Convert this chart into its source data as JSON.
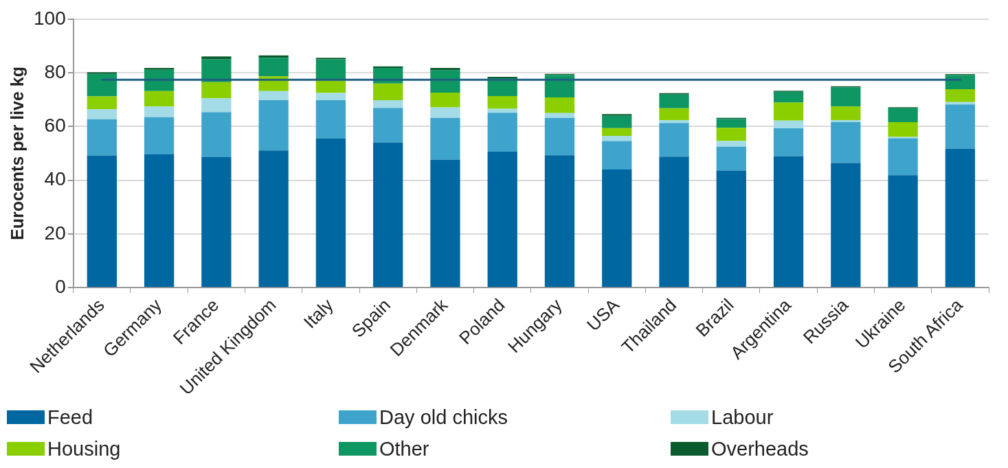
{
  "chart_data": {
    "type": "bar",
    "stacked": true,
    "ylabel": "Eurocents per live kg",
    "categories": [
      "Netherlands",
      "Germany",
      "France",
      "United Kingdom",
      "Italy",
      "Spain",
      "Denmark",
      "Poland",
      "Hungary",
      "USA",
      "Thailand",
      "Brazil",
      "Argentina",
      "Russia",
      "Ukraine",
      "South Africa"
    ],
    "series": [
      {
        "name": "Feed",
        "color": "#0067a0",
        "values": [
          49.2,
          49.6,
          48.6,
          51.1,
          55.5,
          54.1,
          47.6,
          50.6,
          49.3,
          44.0,
          48.8,
          43.6,
          49.0,
          46.4,
          41.9,
          51.7
        ]
      },
      {
        "name": "Day old chicks",
        "color": "#3fa4cc",
        "values": [
          13.5,
          13.9,
          16.7,
          18.7,
          14.3,
          12.8,
          15.6,
          14.5,
          13.9,
          10.6,
          12.5,
          8.9,
          10.3,
          15.3,
          13.7,
          16.5
        ]
      },
      {
        "name": "Labour",
        "color": "#a3dce6",
        "values": [
          3.7,
          3.9,
          5.2,
          3.4,
          2.7,
          2.9,
          3.9,
          1.5,
          1.8,
          1.9,
          1.1,
          2.1,
          2.9,
          0.7,
          0.5,
          0.9
        ]
      },
      {
        "name": "Housing",
        "color": "#8ccf00",
        "values": [
          4.8,
          5.8,
          6.0,
          5.5,
          4.6,
          6.2,
          5.5,
          4.7,
          5.8,
          2.9,
          4.4,
          4.9,
          6.7,
          5.0,
          5.5,
          4.8
        ]
      },
      {
        "name": "Other",
        "color": "#0e9763",
        "values": [
          8.4,
          7.9,
          8.5,
          6.9,
          7.9,
          5.8,
          8.4,
          6.7,
          8.4,
          4.6,
          5.1,
          3.3,
          4.0,
          7.2,
          5.2,
          5.2
        ]
      },
      {
        "name": "Overheads",
        "color": "#0a5c2e",
        "values": [
          0.6,
          0.7,
          1.1,
          0.9,
          0.6,
          0.6,
          0.8,
          0.5,
          0.4,
          0.6,
          0.5,
          0.4,
          0.4,
          0.4,
          0.4,
          0.4
        ]
      }
    ],
    "ylim": [
      0,
      100
    ],
    "yticks": [
      0,
      20,
      40,
      60,
      80,
      100
    ],
    "grid": "y",
    "legend": "bottom",
    "ref_lines": [
      {
        "axis": "y",
        "value": 77.4,
        "color": "#1f5f80"
      }
    ]
  }
}
